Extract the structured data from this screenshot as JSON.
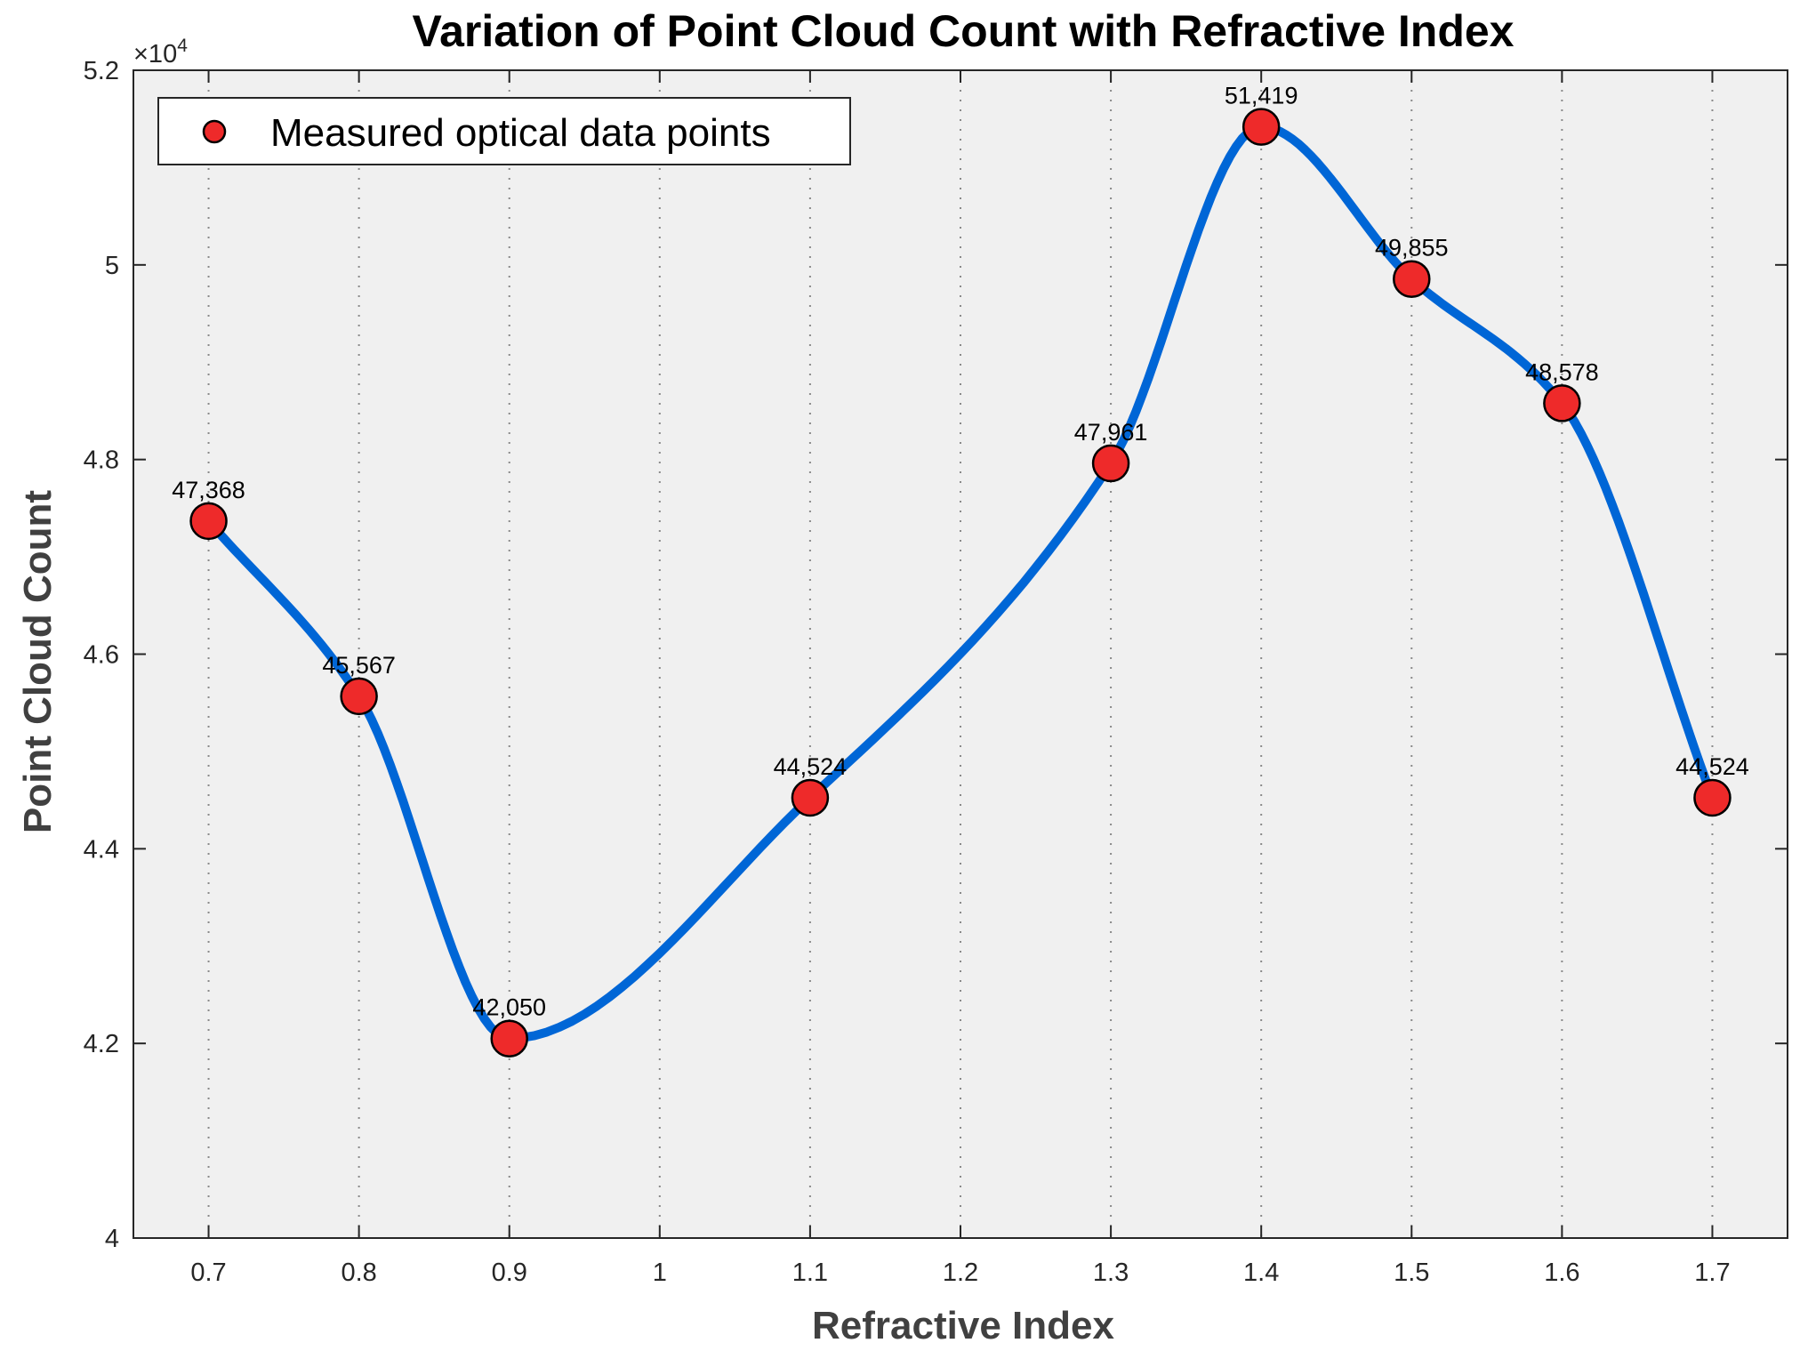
{
  "chart_data": {
    "type": "line",
    "title": "Variation of Point Cloud Count with Refractive Index",
    "xlabel": "Refractive Index",
    "ylabel": "Point Cloud Count",
    "xlim": [
      0.65,
      1.75
    ],
    "ylim": [
      40000,
      52000
    ],
    "x_ticks": [
      "0.7",
      "0.8",
      "0.9",
      "1",
      "1.1",
      "1.2",
      "1.3",
      "1.4",
      "1.5",
      "1.6",
      "1.7"
    ],
    "x_tick_values": [
      0.7,
      0.8,
      0.9,
      1.0,
      1.1,
      1.2,
      1.3,
      1.4,
      1.5,
      1.6,
      1.7
    ],
    "y_ticks": [
      "4",
      "4.2",
      "4.4",
      "4.6",
      "4.8",
      "5",
      "5.2"
    ],
    "y_tick_values": [
      40000,
      42000,
      44000,
      46000,
      48000,
      50000,
      52000
    ],
    "y_exponent_prefix": "×10",
    "y_exponent_power": "4",
    "grid": "x-dotted",
    "background": "#f0f0f0",
    "legend": {
      "position": "top-left",
      "entries": [
        "Measured optical data points"
      ]
    },
    "series": [
      {
        "name": "Measured optical data points",
        "x": [
          0.7,
          0.8,
          0.9,
          1.1,
          1.3,
          1.4,
          1.5,
          1.6,
          1.7
        ],
        "y": [
          47368,
          45567,
          42050,
          44524,
          47961,
          51419,
          49855,
          48578,
          44524
        ],
        "labels": [
          "47,368",
          "45,567",
          "42,050",
          "44,524",
          "47,961",
          "51,419",
          "49,855",
          "48,578",
          "44,524"
        ],
        "line_color": "#0066d6",
        "marker_color": "#ee2a2a"
      }
    ]
  }
}
